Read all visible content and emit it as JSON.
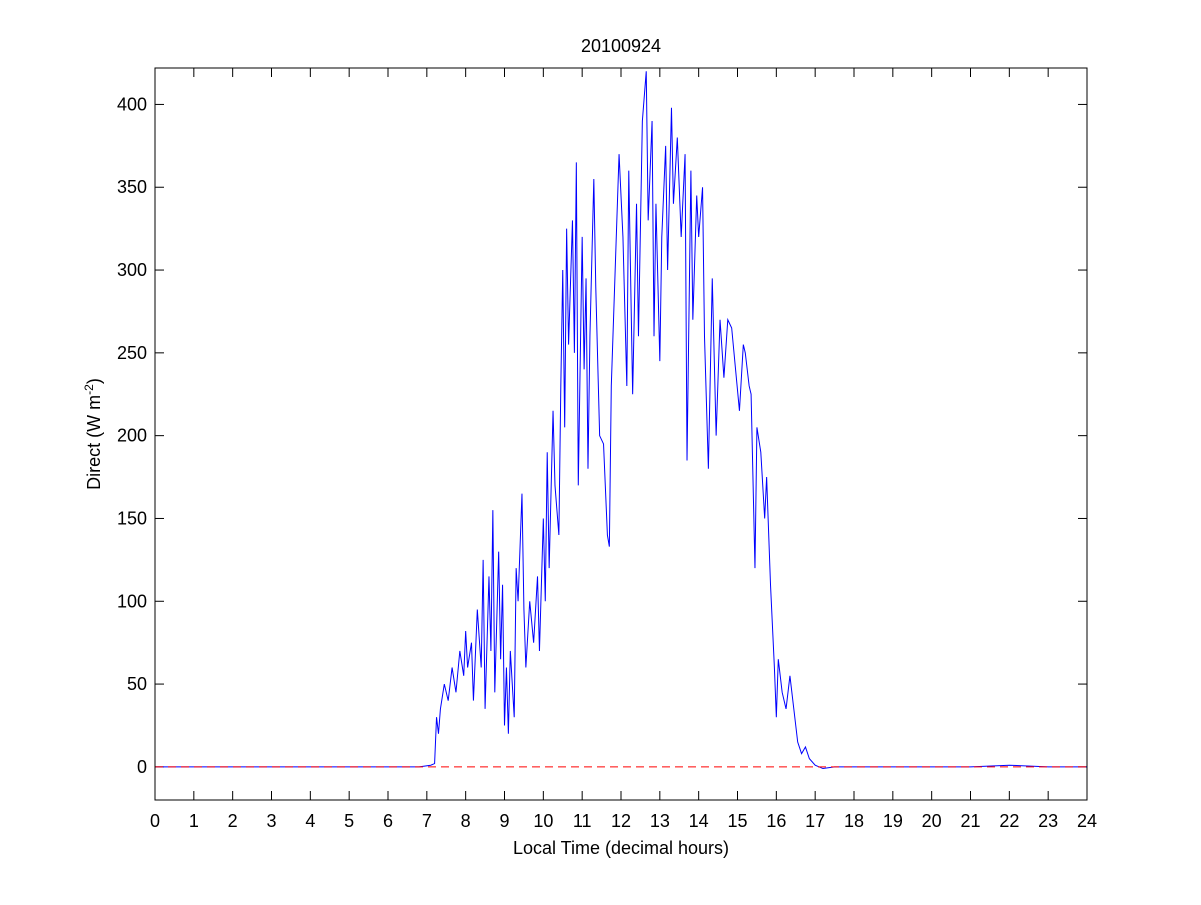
{
  "chart_data": {
    "type": "line",
    "title": "20100924",
    "xlabel": "Local Time (decimal hours)",
    "ylabel": [
      "Direct (W m",
      "-2",
      ")"
    ],
    "xlim": [
      0,
      24
    ],
    "xticks": [
      0,
      1,
      2,
      3,
      4,
      5,
      6,
      7,
      8,
      9,
      10,
      11,
      12,
      13,
      14,
      15,
      16,
      17,
      18,
      19,
      20,
      21,
      22,
      23,
      24
    ],
    "ylim": [
      -20,
      422
    ],
    "yticks": [
      0,
      50,
      100,
      150,
      200,
      250,
      300,
      350,
      400
    ],
    "reference_line": {
      "y": 0,
      "color": "#ff0000"
    },
    "series": [
      {
        "color": "#0000ff",
        "x": [
          0,
          6.8,
          7.1,
          7.2,
          7.25,
          7.3,
          7.35,
          7.45,
          7.55,
          7.65,
          7.75,
          7.85,
          7.95,
          8.0,
          8.05,
          8.15,
          8.2,
          8.3,
          8.4,
          8.45,
          8.5,
          8.6,
          8.65,
          8.7,
          8.75,
          8.85,
          8.9,
          8.95,
          9.0,
          9.05,
          9.1,
          9.15,
          9.25,
          9.3,
          9.35,
          9.45,
          9.5,
          9.55,
          9.65,
          9.75,
          9.85,
          9.9,
          10.0,
          10.05,
          10.1,
          10.15,
          10.25,
          10.3,
          10.4,
          10.45,
          10.5,
          10.55,
          10.6,
          10.65,
          10.75,
          10.8,
          10.85,
          10.9,
          11.0,
          11.05,
          11.1,
          11.15,
          11.2,
          11.3,
          11.35,
          11.45,
          11.55,
          11.65,
          11.7,
          11.75,
          11.85,
          11.95,
          12.05,
          12.15,
          12.2,
          12.3,
          12.4,
          12.45,
          12.55,
          12.65,
          12.7,
          12.8,
          12.85,
          12.9,
          13.0,
          13.05,
          13.15,
          13.2,
          13.3,
          13.35,
          13.45,
          13.55,
          13.65,
          13.7,
          13.8,
          13.85,
          13.95,
          14.0,
          14.1,
          14.15,
          14.25,
          14.35,
          14.45,
          14.55,
          14.65,
          14.75,
          14.85,
          14.95,
          15.05,
          15.15,
          15.2,
          15.3,
          15.35,
          15.45,
          15.5,
          15.6,
          15.7,
          15.75,
          15.85,
          15.95,
          16.0,
          16.05,
          16.15,
          16.25,
          16.35,
          16.45,
          16.55,
          16.65,
          16.75,
          16.85,
          17.0,
          17.2,
          17.5,
          21.0,
          22.0,
          23.0,
          24.0
        ],
        "values": [
          0,
          0,
          1,
          2,
          30,
          20,
          35,
          50,
          40,
          60,
          45,
          70,
          55,
          82,
          60,
          75,
          40,
          95,
          60,
          125,
          35,
          115,
          70,
          155,
          45,
          130,
          65,
          110,
          25,
          60,
          20,
          70,
          30,
          120,
          100,
          165,
          95,
          60,
          100,
          75,
          115,
          70,
          150,
          100,
          190,
          120,
          215,
          170,
          140,
          230,
          300,
          205,
          325,
          255,
          330,
          250,
          365,
          170,
          320,
          240,
          295,
          180,
          260,
          355,
          290,
          200,
          195,
          140,
          133,
          230,
          300,
          370,
          320,
          230,
          360,
          225,
          340,
          260,
          390,
          420,
          330,
          390,
          260,
          340,
          245,
          320,
          375,
          300,
          398,
          340,
          380,
          320,
          370,
          185,
          360,
          270,
          345,
          320,
          350,
          260,
          180,
          295,
          200,
          270,
          235,
          270,
          265,
          240,
          215,
          255,
          250,
          230,
          225,
          120,
          205,
          190,
          150,
          175,
          110,
          60,
          30,
          65,
          45,
          35,
          55,
          35,
          15,
          8,
          12,
          5,
          1,
          -1,
          0,
          0,
          1,
          0,
          0
        ]
      }
    ]
  }
}
